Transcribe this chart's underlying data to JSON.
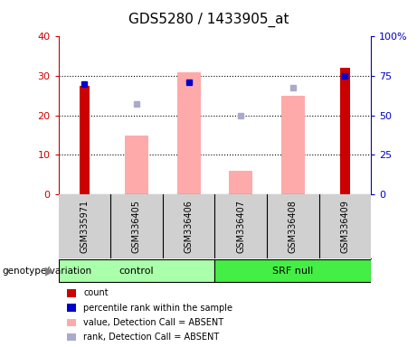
{
  "title": "GDS5280 / 1433905_at",
  "samples": [
    "GSM335971",
    "GSM336405",
    "GSM336406",
    "GSM336407",
    "GSM336408",
    "GSM336409"
  ],
  "groups": {
    "control": [
      0,
      1,
      2
    ],
    "SRF null": [
      3,
      4,
      5
    ]
  },
  "red_bars": [
    27.5,
    null,
    null,
    null,
    null,
    32.0
  ],
  "blue_dots": [
    28.0,
    null,
    28.5,
    null,
    null,
    30.0
  ],
  "pink_bars": [
    null,
    15.0,
    31.0,
    6.0,
    25.0,
    null
  ],
  "lightblue_dots": [
    null,
    23.0,
    null,
    20.0,
    27.0,
    null
  ],
  "ylim_left": [
    0,
    40
  ],
  "ylim_right": [
    0,
    100
  ],
  "yticks_left": [
    0,
    10,
    20,
    30,
    40
  ],
  "yticks_right": [
    0,
    25,
    50,
    75,
    100
  ],
  "ytick_labels_right": [
    "0",
    "25",
    "50",
    "75",
    "100%"
  ],
  "left_color": "#cc0000",
  "right_color": "#0000cc",
  "pink_color": "#ffaaaa",
  "lightblue_color": "#aaaacc",
  "blue_dot_color": "#0000cc",
  "red_bar_width": 0.18,
  "pink_bar_width": 0.45,
  "bg_color": "#d0d0d0",
  "plot_bg": "#ffffff",
  "control_color": "#aaffaa",
  "srfnull_color": "#44ee44",
  "legend_items": [
    {
      "label": "count",
      "color": "#cc0000"
    },
    {
      "label": "percentile rank within the sample",
      "color": "#0000cc"
    },
    {
      "label": "value, Detection Call = ABSENT",
      "color": "#ffaaaa"
    },
    {
      "label": "rank, Detection Call = ABSENT",
      "color": "#aaaacc"
    }
  ]
}
